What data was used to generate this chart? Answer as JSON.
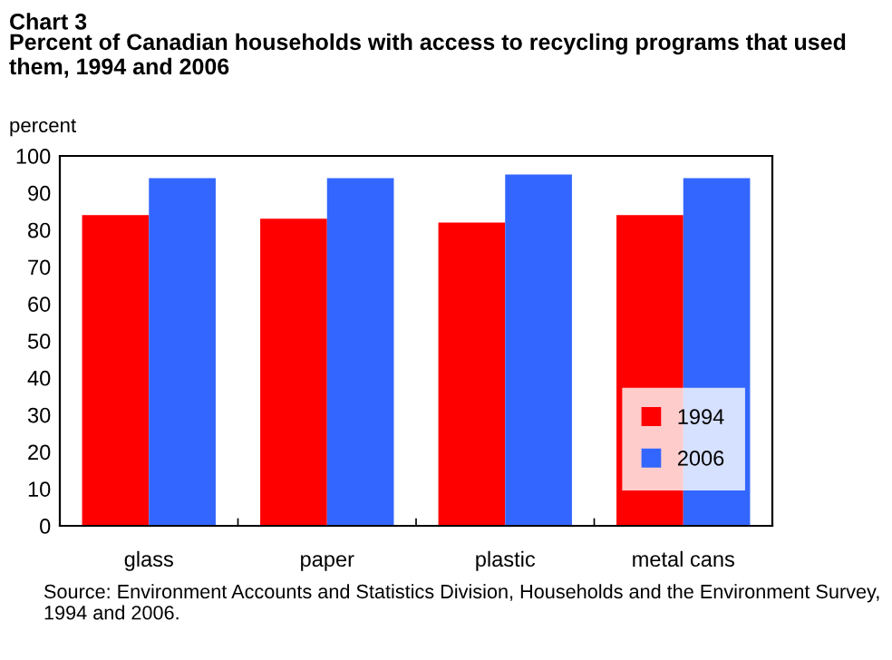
{
  "chart_data": {
    "type": "bar",
    "title": "Chart 3",
    "subtitle": "Percent of Canadian households with access to recycling programs that used them, 1994 and 2006",
    "ylabel": "percent",
    "categories": [
      "glass",
      "paper",
      "plastic",
      "metal cans"
    ],
    "series": [
      {
        "name": "1994",
        "color": "#ff0000",
        "values": [
          84,
          83,
          82,
          84
        ]
      },
      {
        "name": "2006",
        "color": "#3366ff",
        "values": [
          94,
          94,
          95,
          94
        ]
      }
    ],
    "ylim": [
      0,
      100
    ],
    "yticks": [
      0,
      10,
      20,
      30,
      40,
      50,
      60,
      70,
      80,
      90,
      100
    ],
    "grid": false,
    "legend": "bottom right",
    "annotations": [
      "Source: Environment Accounts and Statistics Division, Households and the Environment Survey, 1994 and 2006."
    ]
  }
}
